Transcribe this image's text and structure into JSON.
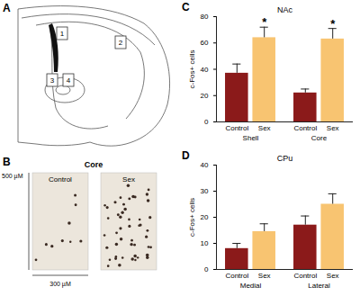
{
  "chart_data": [
    {
      "type": "bar",
      "title": "NAc",
      "annotations": [
        "C"
      ],
      "categories": [
        "Control",
        "Sex",
        "Control",
        "Sex"
      ],
      "groups": [
        "Shell",
        "Shell",
        "Core",
        "Core"
      ],
      "values": [
        37,
        64,
        22,
        63
      ],
      "errors": [
        7,
        8,
        3,
        8
      ],
      "significance": [
        null,
        "*",
        null,
        "*"
      ],
      "colors": [
        "#8b1a1a",
        "#f8c471",
        "#8b1a1a",
        "#f8c471"
      ],
      "ylabel": "c-Fos+ cells",
      "ylim": [
        0,
        80
      ],
      "yticks": [
        0,
        20,
        40,
        60,
        80
      ]
    },
    {
      "type": "bar",
      "title": "CPu",
      "annotations": [
        "D"
      ],
      "categories": [
        "Control",
        "Sex",
        "Control",
        "Sex"
      ],
      "groups": [
        "Medial",
        "Medial",
        "Lateral",
        "Lateral"
      ],
      "values": [
        8,
        14.5,
        17,
        25
      ],
      "errors": [
        2,
        3,
        3.5,
        4
      ],
      "colors": [
        "#8b1a1a",
        "#f8c471",
        "#8b1a1a",
        "#f8c471"
      ],
      "ylabel": "c-Fos+ cells",
      "ylim": [
        0,
        40
      ],
      "yticks": [
        0,
        10,
        20,
        30,
        40
      ]
    }
  ],
  "figure": {
    "panel_a": {
      "label": "A",
      "regions": [
        "1",
        "2",
        "3",
        "4"
      ]
    },
    "panel_b": {
      "label": "B",
      "title": "Core",
      "images": [
        "Control",
        "Sex"
      ],
      "height_label": "500 µM",
      "width_label": "300 µM"
    }
  }
}
